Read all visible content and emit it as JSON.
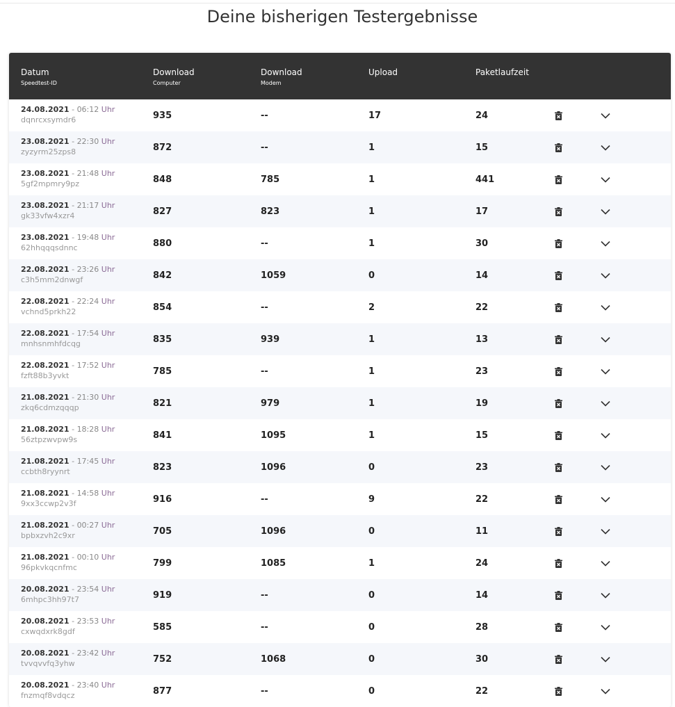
{
  "title": "Deine bisherigen Testergebnisse",
  "columns": [
    {
      "title": "Datum",
      "sub": "Speedtest-ID"
    },
    {
      "title": "Download",
      "sub": "Computer"
    },
    {
      "title": "Download",
      "sub": "Modem"
    },
    {
      "title": "Upload",
      "sub": ""
    },
    {
      "title": "Paketlaufzeit",
      "sub": ""
    }
  ],
  "time_suffix": "Uhr",
  "icons": {
    "delete": "trash-icon",
    "expand": "chevron-down-icon"
  },
  "rows": [
    {
      "date": "24.08.2021",
      "time": "06:12",
      "id": "dqnrcxsymdr6",
      "dl": "935",
      "modem": "--",
      "ul": "17",
      "ping": "24"
    },
    {
      "date": "23.08.2021",
      "time": "22:30",
      "id": "zyzyrm25zps8",
      "dl": "872",
      "modem": "--",
      "ul": "1",
      "ping": "15"
    },
    {
      "date": "23.08.2021",
      "time": "21:48",
      "id": "5gf2mpmry9pz",
      "dl": "848",
      "modem": "785",
      "ul": "1",
      "ping": "441"
    },
    {
      "date": "23.08.2021",
      "time": "21:17",
      "id": "gk33vfw4xzr4",
      "dl": "827",
      "modem": "823",
      "ul": "1",
      "ping": "17"
    },
    {
      "date": "23.08.2021",
      "time": "19:48",
      "id": "62hhqqqsdnnc",
      "dl": "880",
      "modem": "--",
      "ul": "1",
      "ping": "30"
    },
    {
      "date": "22.08.2021",
      "time": "23:26",
      "id": "c3h5mm2dnwgf",
      "dl": "842",
      "modem": "1059",
      "ul": "0",
      "ping": "14"
    },
    {
      "date": "22.08.2021",
      "time": "22:24",
      "id": "vchnd5prkh22",
      "dl": "854",
      "modem": "--",
      "ul": "2",
      "ping": "22"
    },
    {
      "date": "22.08.2021",
      "time": "17:54",
      "id": "mnhsnmhfdcqg",
      "dl": "835",
      "modem": "939",
      "ul": "1",
      "ping": "13"
    },
    {
      "date": "22.08.2021",
      "time": "17:52",
      "id": "fzft88b3yvkt",
      "dl": "785",
      "modem": "--",
      "ul": "1",
      "ping": "23"
    },
    {
      "date": "21.08.2021",
      "time": "21:30",
      "id": "zkq6cdmzqqqp",
      "dl": "821",
      "modem": "979",
      "ul": "1",
      "ping": "19"
    },
    {
      "date": "21.08.2021",
      "time": "18:28",
      "id": "56ztpzwvpw9s",
      "dl": "841",
      "modem": "1095",
      "ul": "1",
      "ping": "15"
    },
    {
      "date": "21.08.2021",
      "time": "17:45",
      "id": "ccbth8ryynrt",
      "dl": "823",
      "modem": "1096",
      "ul": "0",
      "ping": "23"
    },
    {
      "date": "21.08.2021",
      "time": "14:58",
      "id": "9xx3ccwp2v3f",
      "dl": "916",
      "modem": "--",
      "ul": "9",
      "ping": "22"
    },
    {
      "date": "21.08.2021",
      "time": "00:27",
      "id": "bpbxzvh2c9xr",
      "dl": "705",
      "modem": "1096",
      "ul": "0",
      "ping": "11"
    },
    {
      "date": "21.08.2021",
      "time": "00:10",
      "id": "96pkvkqcnfmc",
      "dl": "799",
      "modem": "1085",
      "ul": "1",
      "ping": "24"
    },
    {
      "date": "20.08.2021",
      "time": "23:54",
      "id": "6mhpc3hh97t7",
      "dl": "919",
      "modem": "--",
      "ul": "0",
      "ping": "14"
    },
    {
      "date": "20.08.2021",
      "time": "23:53",
      "id": "cxwqdxrk8gdf",
      "dl": "585",
      "modem": "--",
      "ul": "0",
      "ping": "28"
    },
    {
      "date": "20.08.2021",
      "time": "23:42",
      "id": "tvvqvvfq3yhw",
      "dl": "752",
      "modem": "1068",
      "ul": "0",
      "ping": "30"
    },
    {
      "date": "20.08.2021",
      "time": "23:40",
      "id": "fnzmqf8vdqcz",
      "dl": "877",
      "modem": "--",
      "ul": "0",
      "ping": "22"
    }
  ]
}
